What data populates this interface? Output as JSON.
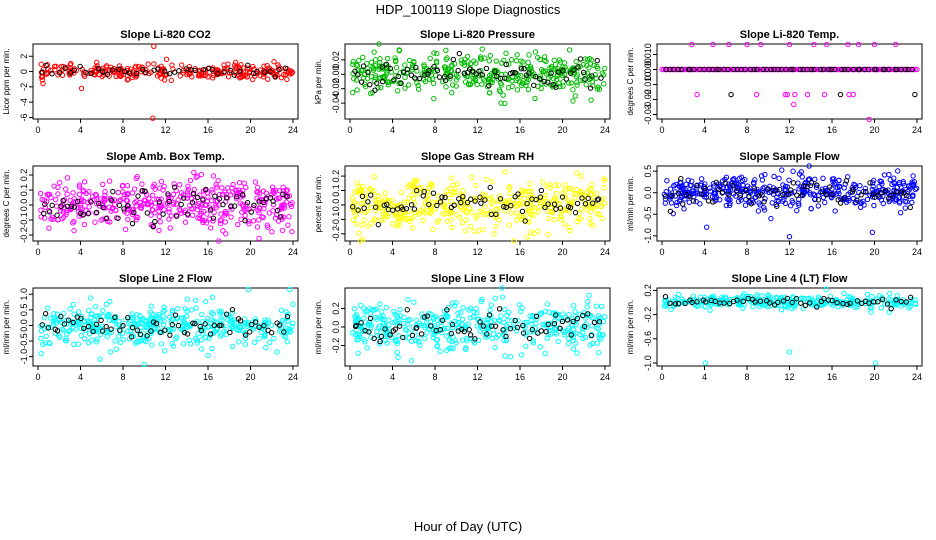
{
  "figure": {
    "title": "HDP_100119  Slope Diagnostics",
    "xlabel": "Hour of Day (UTC)"
  },
  "chart_data": [
    {
      "type": "scatter",
      "title": "Slope Li-820 CO2",
      "ylabel": "Licor ppm per min.",
      "color": "#ff0000",
      "xlim": [
        0,
        24
      ],
      "xticks": [
        0,
        4,
        8,
        12,
        16,
        20,
        24
      ],
      "ylim": [
        -6.2,
        3.6
      ],
      "yticks": [
        -6,
        -4,
        -2,
        0,
        2
      ],
      "yticklabels": [
        "-6",
        "-4",
        "-2",
        "0",
        "2"
      ],
      "spread": 0.45,
      "density": 260,
      "black_count": 45,
      "outliers": [
        [
          0.4,
          -1.1
        ],
        [
          4.1,
          -2.2
        ],
        [
          10.8,
          -6.1
        ],
        [
          10.9,
          3.3
        ],
        [
          10.9,
          1.0
        ],
        [
          12.1,
          1.6
        ],
        [
          18.6,
          1.2
        ],
        [
          8.5,
          -1.0
        ],
        [
          19.1,
          0.9
        ],
        [
          0.9,
          0.9
        ]
      ]
    },
    {
      "type": "scatter",
      "title": "Slope Li-820 Pressure",
      "ylabel": "kPa per min.",
      "color": "#00bb00",
      "xlim": [
        0,
        24
      ],
      "xticks": [
        0,
        4,
        8,
        12,
        16,
        20,
        24
      ],
      "ylim": [
        -0.062,
        0.042
      ],
      "yticks": [
        -0.04,
        -0.02,
        0,
        0.02
      ],
      "yticklabels": [
        "-0.04",
        "-0.02",
        "0.00",
        "0.02"
      ],
      "spread": 0.014,
      "density": 380,
      "black_count": 75,
      "outliers": []
    },
    {
      "type": "scatter",
      "title": "Slope Li-820 Temp.",
      "ylabel": "degrees C per min.",
      "color": "#ff00ff",
      "xlim": [
        0,
        24
      ],
      "xticks": [
        0,
        4,
        8,
        12,
        16,
        20,
        24
      ],
      "ylim": [
        -0.033,
        0.017
      ],
      "yticks": [
        -0.03,
        -0.02,
        -0.01,
        0,
        0.01
      ],
      "yticklabels": [
        "-0.03",
        "-0.02",
        "-0.010",
        "0.000",
        "0.010"
      ],
      "spread": 0,
      "density": 60,
      "black_count": 60,
      "outliers": [
        [
          2.8,
          0.0167
        ],
        [
          4.8,
          0.0167
        ],
        [
          6.3,
          0.0167
        ],
        [
          8.0,
          0.0167
        ],
        [
          9.3,
          0.0167
        ],
        [
          12.0,
          0.0167
        ],
        [
          14.3,
          0.0167
        ],
        [
          15.5,
          0.0167
        ],
        [
          17.5,
          0.0167
        ],
        [
          18.5,
          0.0167
        ],
        [
          20.0,
          0.0167
        ],
        [
          22.0,
          0.0167
        ],
        [
          3.3,
          -0.0167
        ],
        [
          8.9,
          -0.0167
        ],
        [
          11.8,
          -0.0167
        ],
        [
          12.5,
          -0.0167
        ],
        [
          13.7,
          -0.0167
        ],
        [
          15.3,
          -0.0167
        ],
        [
          17.6,
          -0.0167
        ],
        [
          18.0,
          -0.0167
        ],
        [
          11.6,
          -0.0167
        ],
        [
          12.4,
          -0.0233
        ],
        [
          19.5,
          -0.0333
        ]
      ],
      "black_extra": [
        [
          6.5,
          -0.0167
        ],
        [
          16.8,
          -0.0167
        ],
        [
          23.8,
          -0.0167
        ],
        [
          22.9,
          0.0
        ]
      ]
    },
    {
      "type": "scatter",
      "title": "Slope Amb. Box Temp.",
      "ylabel": "degrees C per min.",
      "color": "#ff00ff",
      "xlim": [
        0,
        24
      ],
      "xticks": [
        0,
        4,
        8,
        12,
        16,
        20,
        24
      ],
      "ylim": [
        -0.24,
        0.26
      ],
      "yticks": [
        -0.2,
        -0.1,
        0,
        0.1,
        0.2
      ],
      "yticklabels": [
        "-0.2",
        "-0.1",
        "0.0",
        "0.1",
        "0.2"
      ],
      "spread": 0.085,
      "density": 420,
      "black_count": 70,
      "outliers": []
    },
    {
      "type": "scatter",
      "title": "Slope Gas Stream RH",
      "ylabel": "percent per min.",
      "color": "#ffff00",
      "xlim": [
        0,
        24
      ],
      "xticks": [
        0,
        4,
        8,
        12,
        16,
        20,
        24
      ],
      "ylim": [
        -0.25,
        0.27
      ],
      "yticks": [
        -0.2,
        -0.1,
        0,
        0.1,
        0.2
      ],
      "yticklabels": [
        "-0.2",
        "-0.1",
        "0.0",
        "0.1",
        "0.2"
      ],
      "spread": 0.085,
      "density": 420,
      "black_count": 70,
      "outliers": []
    },
    {
      "type": "scatter",
      "title": "Slope Sample Flow",
      "ylabel": "ml/min per min.",
      "color": "#0000ff",
      "xlim": [
        0,
        24
      ],
      "xticks": [
        0,
        4,
        8,
        12,
        16,
        20,
        24
      ],
      "ylim": [
        -1.12,
        0.62
      ],
      "yticks": [
        -1,
        -0.5,
        0,
        0.5
      ],
      "yticklabels": [
        "-1.0",
        "-0.5",
        "0.0",
        "0.5"
      ],
      "spread": 0.2,
      "density": 420,
      "black_count": 70,
      "outliers": [
        [
          4.2,
          -0.8
        ],
        [
          12.0,
          -1.02
        ],
        [
          19.8,
          -0.92
        ]
      ]
    },
    {
      "type": "scatter",
      "title": "Slope Line 2 Flow",
      "ylabel": "ml/min per min.",
      "color": "#00ffff",
      "xlim": [
        0,
        24
      ],
      "xticks": [
        0,
        4,
        8,
        12,
        16,
        20,
        24
      ],
      "ylim": [
        -1.3,
        1.2
      ],
      "yticks": [
        -1,
        -0.5,
        0,
        0.5,
        1
      ],
      "yticklabels": [
        "-1.0",
        "-0.5",
        "0.0",
        "0.5",
        "1.0"
      ],
      "spread": 0.32,
      "density": 400,
      "black_count": 65,
      "outliers": [
        [
          0.3,
          -0.9
        ],
        [
          10.0,
          -1.25
        ],
        [
          19.8,
          1.15
        ],
        [
          23.7,
          1.15
        ]
      ]
    },
    {
      "type": "scatter",
      "title": "Slope Line 3 Flow",
      "ylabel": "ml/min per min.",
      "color": "#00ffff",
      "xlim": [
        0,
        24
      ],
      "xticks": [
        0,
        4,
        8,
        12,
        16,
        20,
        24
      ],
      "ylim": [
        -0.42,
        0.42
      ],
      "yticks": [
        -0.2,
        0,
        0.2
      ],
      "yticklabels": [
        "-0.2",
        "0.0",
        "0.2"
      ],
      "spread": 0.13,
      "density": 420,
      "black_count": 70,
      "outliers": []
    },
    {
      "type": "scatter",
      "title": "Slope Line 4 (LT) Flow",
      "ylabel": "ml/min per min.",
      "color": "#00ffff",
      "xlim": [
        0,
        24
      ],
      "xticks": [
        0,
        4,
        8,
        12,
        16,
        20,
        24
      ],
      "ylim": [
        -1.05,
        0.24
      ],
      "yticks": [
        -1,
        -0.6,
        -0.2,
        0.2
      ],
      "yticklabels": [
        "-1.0",
        "-0.6",
        "-0.2",
        "0.2"
      ],
      "spread": 0.055,
      "center": 0.01,
      "density": 320,
      "black_count": 55,
      "outliers": [
        [
          4.1,
          -1.0
        ],
        [
          12.0,
          -0.82
        ],
        [
          20.1,
          -1.0
        ]
      ]
    }
  ]
}
